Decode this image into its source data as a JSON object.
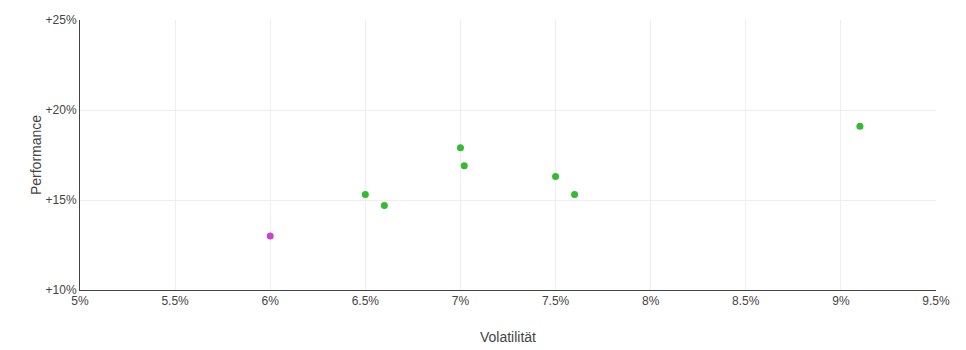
{
  "chart_data": {
    "type": "scatter",
    "xlabel": "Volatilität",
    "ylabel": "Performance",
    "series": [
      {
        "color": "#33bb33",
        "x": [
          0.065,
          0.066,
          0.07,
          0.0702,
          0.075,
          0.076,
          0.091
        ],
        "values": [
          0.153,
          0.147,
          0.179,
          0.169,
          0.163,
          0.153,
          0.191
        ]
      },
      {
        "color": "#cc44cc",
        "x": [
          0.06
        ],
        "values": [
          0.13
        ]
      }
    ],
    "xlim": [
      0.05,
      0.095
    ],
    "ylim": [
      0.1,
      0.25
    ],
    "xticks": [
      {
        "value": 0.05,
        "label": "5%"
      },
      {
        "value": 0.055,
        "label": "5.5%"
      },
      {
        "value": 0.06,
        "label": "6%"
      },
      {
        "value": 0.065,
        "label": "6.5%"
      },
      {
        "value": 0.07,
        "label": "7%"
      },
      {
        "value": 0.075,
        "label": "7.5%"
      },
      {
        "value": 0.08,
        "label": "8%"
      },
      {
        "value": 0.085,
        "label": "8.5%"
      },
      {
        "value": 0.09,
        "label": "9%"
      },
      {
        "value": 0.095,
        "label": "9.5%"
      }
    ],
    "yticks": [
      {
        "value": 0.1,
        "label": "+10%"
      },
      {
        "value": 0.15,
        "label": "+15%"
      },
      {
        "value": 0.2,
        "label": "+20%"
      },
      {
        "value": 0.25,
        "label": "+25%"
      }
    ],
    "grid": true
  }
}
